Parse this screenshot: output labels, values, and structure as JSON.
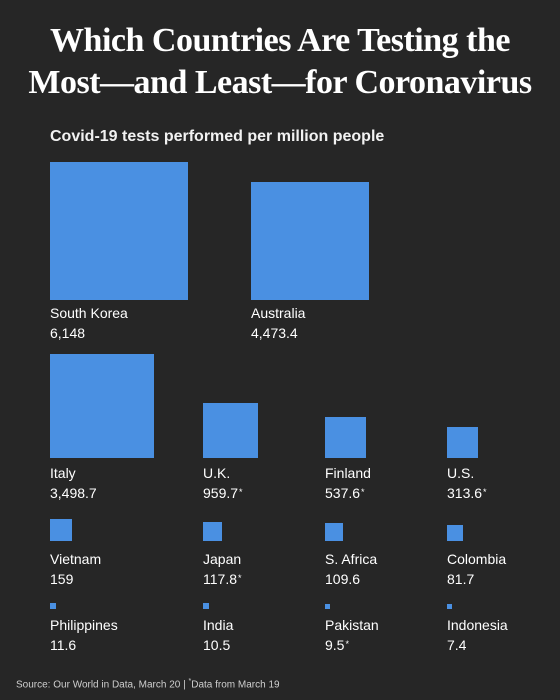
{
  "title_line1": "Which Countries Are Testing the",
  "title_line2": "Most—and Least—for Coronavirus",
  "chart_data": {
    "type": "square-area",
    "title": "Covid-19 tests performed per million people",
    "bar_color": "#4a90e2",
    "items": [
      {
        "country": "South Korea",
        "value": 6148,
        "label": "6,148",
        "footnote": ""
      },
      {
        "country": "Australia",
        "value": 4473.4,
        "label": "4,473.4",
        "footnote": ""
      },
      {
        "country": "Italy",
        "value": 3498.7,
        "label": "3,498.7",
        "footnote": ""
      },
      {
        "country": "U.K.",
        "value": 959.7,
        "label": "959.7",
        "footnote": "*"
      },
      {
        "country": "Finland",
        "value": 537.6,
        "label": "537.6",
        "footnote": "*"
      },
      {
        "country": "U.S.",
        "value": 313.6,
        "label": "313.6",
        "footnote": "*"
      },
      {
        "country": "Vietnam",
        "value": 159,
        "label": "159",
        "footnote": ""
      },
      {
        "country": "Japan",
        "value": 117.8,
        "label": "117.8",
        "footnote": "*"
      },
      {
        "country": "S. Africa",
        "value": 109.6,
        "label": "109.6",
        "footnote": ""
      },
      {
        "country": "Colombia",
        "value": 81.7,
        "label": "81.7",
        "footnote": ""
      },
      {
        "country": "Philippines",
        "value": 11.6,
        "label": "11.6",
        "footnote": ""
      },
      {
        "country": "India",
        "value": 10.5,
        "label": "10.5",
        "footnote": ""
      },
      {
        "country": "Pakistan",
        "value": 9.5,
        "label": "9.5",
        "footnote": "*"
      },
      {
        "country": "Indonesia",
        "value": 7.4,
        "label": "7.4",
        "footnote": ""
      }
    ]
  },
  "source": {
    "text": "Source: Our World in Data, March 20 | ",
    "footnote_mark": "*",
    "footnote_text": "Data from March 19"
  }
}
